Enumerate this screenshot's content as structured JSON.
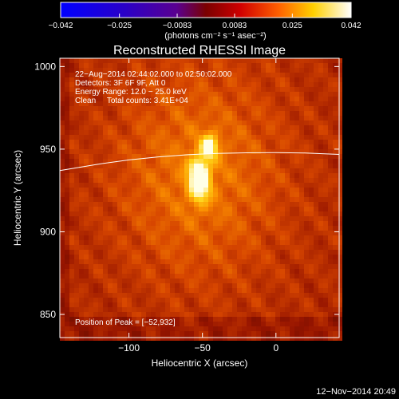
{
  "chart_data": {
    "type": "heatmap",
    "title": "Reconstructed RHESSI Image",
    "xlabel": "Heliocentric X (arcsec)",
    "ylabel": "Heliocentric Y (arcsec)",
    "xlim": [
      -147,
      43
    ],
    "ylim": [
      836,
      1005
    ],
    "x_ticks": [
      -100,
      -50,
      0
    ],
    "x_tick_labels": [
      "−100",
      "−50",
      "0"
    ],
    "y_ticks": [
      850,
      900,
      950,
      1000
    ],
    "y_tick_labels": [
      "850",
      "900",
      "950",
      "1000"
    ],
    "colorbar": {
      "range": [
        -0.042,
        0.042
      ],
      "ticks": [
        -0.042,
        -0.025,
        -0.0083,
        0.0083,
        0.025,
        0.042
      ],
      "tick_labels": [
        "−0.042",
        "−0.025",
        "−0.0083",
        "0.0083",
        "0.025",
        "0.042"
      ],
      "unit_label": "(photons cm⁻² s⁻¹ asec⁻²)"
    },
    "annotations": [
      "22−Aug−2014 02:44:02.000 to 02:50:02.000",
      "Detectors: 3F 6F 9F, Att 0",
      "Energy Range: 12.0 − 25.0 keV",
      "Clean     Total counts: 3.41E+04"
    ],
    "peak_label": "Position of Peak = [−52,932]",
    "peak": [
      -52,
      932
    ],
    "sources": [
      {
        "x": -52,
        "y": 932,
        "sx": 5,
        "sy": 9,
        "amp": 1.0
      },
      {
        "x": -45,
        "y": 952,
        "sx": 4,
        "sy": 5,
        "amp": 0.7
      }
    ],
    "limb_curve": {
      "x": [
        -147,
        -120,
        -100,
        -80,
        -60,
        -40,
        -20,
        0,
        20,
        43
      ],
      "y": [
        937,
        941,
        943.5,
        945.3,
        946.6,
        947.4,
        947.8,
        947.9,
        947.7,
        946.8
      ]
    },
    "footer": "12−Nov−2014 20:49"
  }
}
